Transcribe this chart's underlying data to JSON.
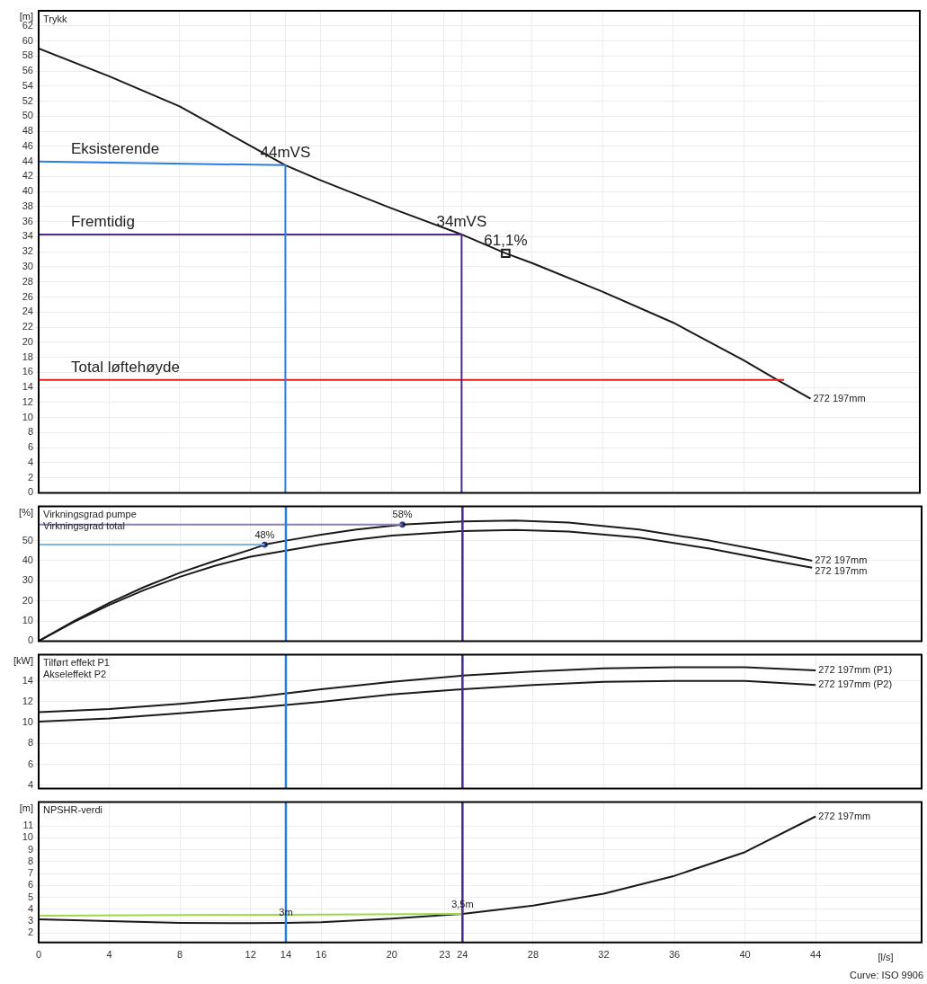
{
  "chart_data": [
    {
      "type": "line",
      "title": "Trykk",
      "ylabel": "[m]",
      "xlim": [
        0,
        50
      ],
      "xticks": [
        0,
        4,
        8,
        12,
        14,
        16,
        20,
        23,
        24,
        28,
        32,
        36,
        40,
        44
      ],
      "ylim": [
        0,
        64
      ],
      "yticks": [
        0,
        2,
        4,
        6,
        8,
        10,
        12,
        14,
        16,
        18,
        20,
        22,
        24,
        26,
        28,
        30,
        32,
        34,
        36,
        38,
        40,
        42,
        44,
        46,
        48,
        50,
        52,
        54,
        56,
        58,
        60,
        62
      ],
      "grid": true,
      "tick_labels": "y",
      "series": [
        {
          "color": "#2a7de1",
          "x": [
            0,
            14,
            14
          ],
          "values": [
            44,
            43.5,
            0
          ]
        },
        {
          "color": "#4b2a8c",
          "x": [
            0,
            24,
            24
          ],
          "values": [
            34.3,
            34.3,
            0
          ]
        },
        {
          "color": "#e3201b",
          "x": [
            0,
            42.3
          ],
          "values": [
            15,
            15
          ]
        },
        {
          "name": "272 197mm",
          "color": "#1a1a1a",
          "x": [
            0,
            4,
            8,
            12,
            14,
            16,
            20,
            24,
            26.5,
            28,
            32,
            36,
            40,
            41.9,
            43.8
          ],
          "values": [
            59,
            55.3,
            51.3,
            46.1,
            43.5,
            41.5,
            37.8,
            34.3,
            31.8,
            30.5,
            26.7,
            22.6,
            17.6,
            15,
            12.5
          ]
        },
        {
          "type": "scatter",
          "marker": "square",
          "color": "#1a1a1a",
          "x": [
            26.5
          ],
          "values": [
            31.8
          ]
        }
      ],
      "annotations": [
        {
          "text": "Eksisterende",
          "x": 0,
          "y": 44
        },
        {
          "text": "Fremtidig",
          "x": 0,
          "y": 34.3
        },
        {
          "text": "44mVS",
          "x": 14,
          "y": 43.5
        },
        {
          "text": "34mVS",
          "x": 24,
          "y": 34.3
        },
        {
          "text": "61,1%",
          "x": 26.5,
          "y": 31.8
        },
        {
          "text": "Total løftehøyde",
          "x": 0,
          "y": 15
        }
      ]
    },
    {
      "type": "line",
      "title": "Virkningsgrad pumpe",
      "ylabel": "[%]",
      "xlim": [
        0,
        50
      ],
      "xticks": [
        0,
        4,
        8,
        12,
        14,
        16,
        20,
        23,
        24,
        28,
        32,
        36,
        40,
        44
      ],
      "ylim": [
        0,
        67
      ],
      "yticks": [
        0,
        10,
        20,
        30,
        40,
        50
      ],
      "grid": true,
      "tick_labels": "y",
      "series": [
        {
          "color": "#7fb6ea",
          "x": [
            0,
            12.8
          ],
          "values": [
            48,
            48
          ]
        },
        {
          "color": "#8a7fb8",
          "x": [
            0,
            20.6
          ],
          "values": [
            58,
            58
          ]
        },
        {
          "name": "272 197mm",
          "color": "#1a1a1a",
          "x": [
            0,
            2,
            4,
            6,
            8,
            10,
            12,
            12.8,
            14,
            16,
            18,
            20.6,
            24,
            27,
            30,
            34,
            38,
            41,
            43.8
          ],
          "values": [
            0,
            10,
            19,
            27,
            34,
            40,
            45.5,
            48,
            50,
            53,
            55.5,
            58,
            59.5,
            60,
            59,
            55.5,
            50,
            45,
            40
          ]
        },
        {
          "name": "272 197mm",
          "color": "#1a1a1a",
          "x": [
            0,
            2,
            4,
            6,
            8,
            10,
            12,
            14,
            16,
            18,
            20,
            24,
            27,
            30,
            34,
            38,
            41,
            43.8
          ],
          "values": [
            0,
            9.5,
            18,
            25.5,
            32,
            37.5,
            42,
            45,
            48,
            50.5,
            52.5,
            54.8,
            55.3,
            54.5,
            51.5,
            46,
            41,
            36.5
          ]
        },
        {
          "type": "scatter",
          "marker": "circle",
          "color": "#2b3a8c",
          "x": [
            12.8,
            20.6
          ],
          "values": [
            48,
            58
          ]
        }
      ],
      "ref_lines": [
        {
          "axis": "x",
          "value": 14,
          "color": "#2a7de1"
        },
        {
          "axis": "x",
          "value": 24,
          "color": "#4b2a8c"
        }
      ],
      "annotations": [
        "Virkningsgrad total",
        {
          "text": "48%",
          "x": 12.8,
          "y": 48
        },
        {
          "text": "58%",
          "x": 20.6,
          "y": 58
        }
      ]
    },
    {
      "type": "line",
      "title": "Tilført effekt P1",
      "ylabel": "[kW]",
      "xlim": [
        0,
        50
      ],
      "xticks": [
        0,
        4,
        8,
        12,
        14,
        16,
        20,
        23,
        24,
        28,
        32,
        36,
        40,
        44
      ],
      "ylim": [
        3.7,
        16.5
      ],
      "yticks": [
        4,
        6,
        8,
        10,
        12,
        14
      ],
      "grid": true,
      "tick_labels": "y",
      "series": [
        {
          "name": "272 197mm (P1)",
          "color": "#1a1a1a",
          "x": [
            0,
            4,
            8,
            12,
            16,
            20,
            24,
            28,
            32,
            36,
            40,
            44
          ],
          "values": [
            11.0,
            11.3,
            11.8,
            12.4,
            13.2,
            13.9,
            14.5,
            14.9,
            15.2,
            15.3,
            15.3,
            15.0
          ]
        },
        {
          "name": "272 197mm (P2)",
          "color": "#1a1a1a",
          "x": [
            0,
            4,
            8,
            12,
            16,
            20,
            24,
            28,
            32,
            36,
            40,
            44
          ],
          "values": [
            10.1,
            10.4,
            10.9,
            11.4,
            12.0,
            12.7,
            13.2,
            13.6,
            13.9,
            14.0,
            14.0,
            13.6
          ]
        }
      ],
      "ref_lines": [
        {
          "axis": "x",
          "value": 14,
          "color": "#2a7de1"
        },
        {
          "axis": "x",
          "value": 24,
          "color": "#4b2a8c"
        }
      ],
      "annotations": [
        "Akseleffekt P2"
      ]
    },
    {
      "type": "line",
      "title": "NPSHR-verdi",
      "ylabel": "[m]",
      "xlabel": "[l/s]",
      "xlim": [
        0,
        50
      ],
      "xticks": [
        0,
        4,
        8,
        12,
        14,
        16,
        20,
        23,
        24,
        28,
        32,
        36,
        40,
        44
      ],
      "ylim": [
        1.2,
        13
      ],
      "yticks": [
        2,
        3,
        4,
        5,
        6,
        7,
        8,
        9,
        10,
        11
      ],
      "grid": true,
      "series": [
        {
          "color": "#9ed84a",
          "x": [
            0,
            24
          ],
          "values": [
            3.45,
            3.6
          ]
        },
        {
          "name": "272 197mm",
          "color": "#1a1a1a",
          "x": [
            0,
            4,
            8,
            12,
            14,
            16,
            20,
            24,
            28,
            32,
            36,
            40,
            44
          ],
          "values": [
            3.15,
            3.0,
            2.85,
            2.82,
            2.85,
            2.9,
            3.2,
            3.6,
            4.3,
            5.3,
            6.8,
            8.8,
            11.8
          ]
        }
      ],
      "ref_lines": [
        {
          "axis": "x",
          "value": 14,
          "color": "#2a7de1"
        },
        {
          "axis": "x",
          "value": 24,
          "color": "#4b2a8c"
        }
      ],
      "annotations": [
        {
          "text": "3m",
          "x": 14,
          "y": 2.85
        },
        {
          "text": "3,5m",
          "x": 24,
          "y": 3.6
        },
        "Curve: ISO 9906"
      ]
    }
  ]
}
